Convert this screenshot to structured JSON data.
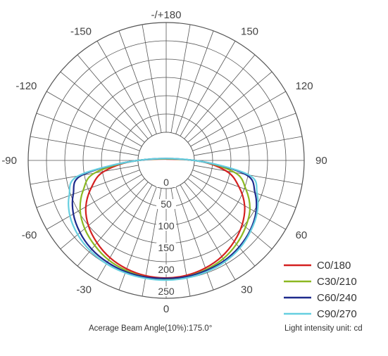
{
  "chart_data": {
    "type": "polar",
    "angle_labels": [
      {
        "angle": 180,
        "text": "-/+180"
      },
      {
        "angle": -150,
        "text": "-150"
      },
      {
        "angle": 150,
        "text": "150"
      },
      {
        "angle": -120,
        "text": "-120"
      },
      {
        "angle": 120,
        "text": "120"
      },
      {
        "angle": -90,
        "text": "-90"
      },
      {
        "angle": 90,
        "text": "90"
      },
      {
        "angle": -60,
        "text": "-60"
      },
      {
        "angle": 60,
        "text": "60"
      },
      {
        "angle": -30,
        "text": "-30"
      },
      {
        "angle": 30,
        "text": "30"
      },
      {
        "angle": 0,
        "text": "0"
      }
    ],
    "radial_ticks": [
      0,
      50,
      100,
      150,
      200,
      250
    ],
    "radial_tick_labels": [
      "0",
      "50",
      "100",
      "150",
      "200",
      "250"
    ],
    "radial_max": 250,
    "spoke_step_deg": 10,
    "unit_note": "Light intensity unit: cd",
    "beam_angle_note": "Acerage Beam Angle(10%):175.0°",
    "series": [
      {
        "name": "C0/180",
        "color": "#d42020",
        "angles": [
          0,
          10,
          20,
          30,
          40,
          50,
          60,
          70,
          80,
          90
        ],
        "right": [
          205,
          203,
          198,
          190,
          178,
          163,
          143,
          113,
          75,
          0
        ],
        "left": [
          205,
          204,
          200,
          193,
          182,
          168,
          148,
          118,
          80,
          0
        ]
      },
      {
        "name": "C30/210",
        "color": "#8cb822",
        "angles": [
          0,
          10,
          20,
          30,
          40,
          50,
          60,
          70,
          80,
          90
        ],
        "right": [
          208,
          206,
          202,
          196,
          186,
          173,
          157,
          130,
          95,
          0
        ],
        "left": [
          208,
          207,
          204,
          199,
          190,
          179,
          163,
          138,
          102,
          0
        ]
      },
      {
        "name": "C60/240",
        "color": "#1e2a8c",
        "angles": [
          0,
          10,
          20,
          30,
          40,
          50,
          60,
          70,
          80,
          90
        ],
        "right": [
          206,
          206,
          204,
          201,
          195,
          186,
          173,
          152,
          120,
          0
        ],
        "left": [
          206,
          207,
          207,
          205,
          201,
          193,
          181,
          162,
          132,
          0
        ]
      },
      {
        "name": "C90/270",
        "color": "#66cfe0",
        "angles": [
          0,
          10,
          20,
          30,
          40,
          50,
          60,
          70,
          80,
          90
        ],
        "right": [
          210,
          209,
          207,
          204,
          198,
          188,
          176,
          157,
          128,
          0
        ],
        "left": [
          210,
          210,
          210,
          209,
          206,
          200,
          190,
          172,
          140,
          0
        ]
      }
    ]
  },
  "footer": {
    "beam_angle_text": "Acerage Beam Angle(10%):175.0°",
    "unit_text": "Light intensity unit: cd"
  }
}
